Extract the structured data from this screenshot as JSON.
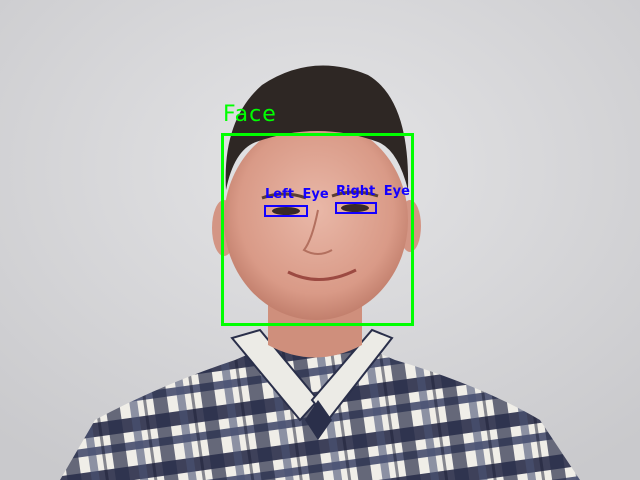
{
  "colors": {
    "face_box": "#00ff00",
    "eye_box": "#1400ff",
    "background": "#d6d6d8"
  },
  "detections": {
    "face": {
      "label": "Face"
    },
    "left_eye": {
      "label": "Left Eye"
    },
    "right_eye": {
      "label": "Right Eye"
    }
  }
}
